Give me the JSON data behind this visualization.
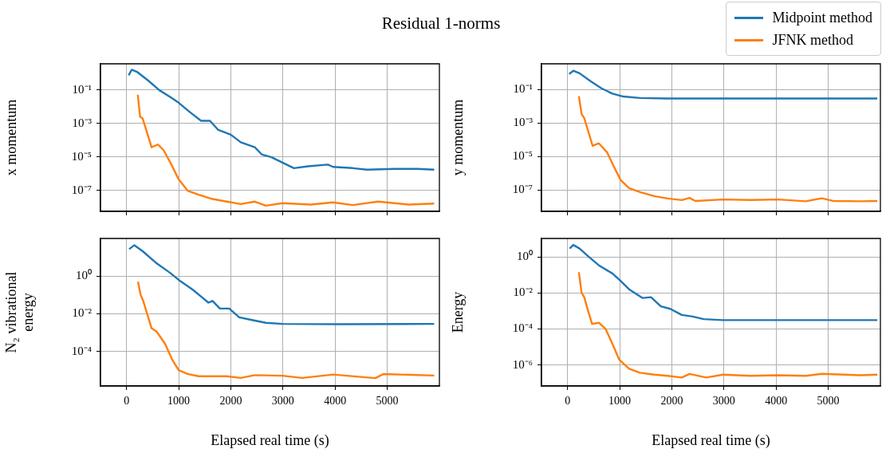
{
  "chart_data": [
    {
      "type": "line",
      "title": "Residual 1-norms",
      "ylabel": "x momentum",
      "log": "y",
      "grid": true,
      "tick_labels": "y",
      "legend": false,
      "xlim": [
        -500,
        6000
      ],
      "xticks": [
        0,
        1000,
        2000,
        3000,
        4000,
        5000
      ],
      "ylim": [
        5.5e-09,
        3.6
      ],
      "yticks": [
        {
          "value": 0.1,
          "label": "10⁻¹"
        },
        {
          "value": 0.001,
          "label": "10⁻³"
        },
        {
          "value": 1e-05,
          "label": "10⁻⁵"
        },
        {
          "value": 1e-07,
          "label": "10⁻⁷"
        }
      ],
      "series": [
        {
          "color": "#1f77b4",
          "x": [
            40,
            100,
            200,
            410,
            630,
            840,
            1000,
            1220,
            1430,
            1600,
            1760,
            2000,
            2190,
            2460,
            2590,
            2780,
            2990,
            3210,
            3480,
            3860,
            3960,
            4340,
            4610,
            5150,
            5580,
            5900
          ],
          "values": [
            0.74,
            1.6,
            1.2,
            0.37,
            0.095,
            0.037,
            0.017,
            0.0045,
            0.0014,
            0.0014,
            0.0004,
            0.00021,
            7.4e-05,
            3.7e-05,
            1.4e-05,
            9.5e-06,
            4.5e-06,
            2.1e-06,
            2.7e-06,
            3.4e-06,
            2.5e-06,
            2.1e-06,
            1.7e-06,
            1.9e-06,
            1.9e-06,
            1.7e-06
          ]
        },
        {
          "color": "#ff7f0e",
          "x": [
            215,
            260,
            310,
            390,
            480,
            600,
            710,
            840,
            1000,
            1170,
            1380,
            1650,
            1920,
            2190,
            2460,
            2670,
            2990,
            3530,
            3960,
            4340,
            4820,
            5410,
            5900
          ],
          "values": [
            0.05,
            0.0025,
            0.0019,
            0.0003,
            3.7e-05,
            5.4e-05,
            2.5e-05,
            4.5e-06,
            4.5e-07,
            9.5e-08,
            5.4e-08,
            3e-08,
            2.1e-08,
            1.5e-08,
            2.1e-08,
            1.2e-08,
            1.7e-08,
            1.4e-08,
            1.9e-08,
            1.3e-08,
            2.1e-08,
            1.4e-08,
            1.6e-08
          ]
        }
      ]
    },
    {
      "type": "line",
      "ylabel": "y momentum",
      "log": "y",
      "grid": true,
      "tick_labels": "y",
      "legend": "top right",
      "xlim": [
        -500,
        6000
      ],
      "xticks": [
        0,
        1000,
        2000,
        3000,
        4000,
        5000
      ],
      "ylim": [
        5.5e-09,
        3.5
      ],
      "yticks": [
        {
          "value": 0.1,
          "label": "10⁻¹"
        },
        {
          "value": 0.001,
          "label": "10⁻³"
        },
        {
          "value": 1e-05,
          "label": "10⁻⁵"
        },
        {
          "value": 1e-07,
          "label": "10⁻⁷"
        }
      ],
      "series": [
        {
          "name": "Midpoint method",
          "color": "#1f77b4",
          "x": [
            30,
            110,
            230,
            440,
            650,
            860,
            1070,
            1390,
            1920,
            2980,
            5940
          ],
          "values": [
            0.85,
            1.35,
            0.95,
            0.32,
            0.12,
            0.058,
            0.039,
            0.032,
            0.03,
            0.03,
            0.03
          ]
        },
        {
          "name": "JFNK method",
          "color": "#ff7f0e",
          "x": [
            217,
            270,
            320,
            390,
            480,
            600,
            760,
            890,
            1020,
            1180,
            1390,
            1660,
            1920,
            2190,
            2340,
            2450,
            2980,
            3510,
            4040,
            4570,
            4880,
            5090,
            5620,
            5940
          ],
          "values": [
            0.041,
            0.0035,
            0.002,
            0.00039,
            4.5e-05,
            6.3e-05,
            1.8e-05,
            2.5e-06,
            4e-07,
            1.35e-07,
            7.8e-08,
            4.5e-08,
            3.2e-08,
            2.6e-08,
            3.5e-08,
            2.3e-08,
            2.8e-08,
            2.6e-08,
            2.8e-08,
            2.2e-08,
            3.3e-08,
            2.3e-08,
            2.2e-08,
            2.3e-08
          ]
        }
      ]
    },
    {
      "type": "line",
      "xlabel": "Elapsed real time (s)",
      "ylabel": "N₂ vibrational energy",
      "log": "y",
      "grid": true,
      "legend": false,
      "xlim": [
        -500,
        6000
      ],
      "xticks": [
        0,
        1000,
        2000,
        3000,
        4000,
        5000
      ],
      "ylim": [
        1.45e-06,
        100
      ],
      "yticks": [
        {
          "value": 1,
          "label": "10⁰"
        },
        {
          "value": 0.01,
          "label": "10⁻²"
        },
        {
          "value": 0.0001,
          "label": "10⁻⁴"
        }
      ],
      "series": [
        {
          "color": "#1f77b4",
          "x": [
            50,
            150,
            310,
            580,
            840,
            1000,
            1270,
            1570,
            1650,
            1790,
            1970,
            2160,
            2350,
            2670,
            2990,
            4070,
            5900
          ],
          "values": [
            27,
            44,
            21,
            4.7,
            1.45,
            0.63,
            0.19,
            0.039,
            0.048,
            0.019,
            0.019,
            0.0065,
            0.005,
            0.0033,
            0.0029,
            0.0028,
            0.0029
          ]
        },
        {
          "color": "#ff7f0e",
          "x": [
            220,
            270,
            320,
            480,
            580,
            740,
            870,
            1000,
            1170,
            1380,
            1920,
            2190,
            2460,
            2990,
            3370,
            3960,
            4770,
            4930,
            5900
          ],
          "values": [
            0.5,
            0.1,
            0.048,
            0.0017,
            0.0011,
            0.00025,
            3.9e-05,
            1e-05,
            6.3e-06,
            4.8e-06,
            4.8e-06,
            3.9e-06,
            5.5e-06,
            5.1e-06,
            3.9e-06,
            5.9e-06,
            3.8e-06,
            6.3e-06,
            5.2e-06
          ]
        }
      ]
    },
    {
      "type": "line",
      "xlabel": "Elapsed real time (s)",
      "ylabel": "Energy",
      "log": "y",
      "grid": true,
      "legend": false,
      "xlim": [
        -500,
        6000
      ],
      "xticks": [
        0,
        1000,
        2000,
        3000,
        4000,
        5000
      ],
      "ylim": [
        6.8e-08,
        10.5
      ],
      "yticks": [
        {
          "value": 1,
          "label": "10⁰"
        },
        {
          "value": 0.01,
          "label": "10⁻²"
        },
        {
          "value": 0.0001,
          "label": "10⁻⁴"
        },
        {
          "value": 1e-06,
          "label": "10⁻⁶"
        }
      ],
      "series": [
        {
          "color": "#1f77b4",
          "x": [
            40,
            110,
            230,
            410,
            600,
            860,
            1000,
            1180,
            1440,
            1600,
            1790,
            1970,
            2190,
            2400,
            2610,
            2980,
            3510,
            5940
          ],
          "values": [
            2.9,
            4.6,
            2.9,
            1.0,
            0.34,
            0.12,
            0.052,
            0.016,
            0.0052,
            0.0058,
            0.0018,
            0.0013,
            0.0006,
            0.00049,
            0.00035,
            0.00031,
            0.00031,
            0.00031
          ]
        },
        {
          "color": "#ff7f0e",
          "x": [
            217,
            270,
            320,
            390,
            470,
            600,
            730,
            860,
            990,
            1180,
            1390,
            1660,
            1920,
            2190,
            2340,
            2660,
            2980,
            3510,
            4040,
            4570,
            4880,
            5620,
            5940
          ],
          "values": [
            0.14,
            0.01,
            0.0058,
            0.0011,
            0.00019,
            0.00022,
            0.0001,
            1.5e-05,
            2e-06,
            6.2e-07,
            3.7e-07,
            2.9e-07,
            2.5e-07,
            2e-07,
            3.2e-07,
            2e-07,
            2.9e-07,
            2.5e-07,
            2.7e-07,
            2.5e-07,
            3.2e-07,
            2.7e-07,
            2.9e-07
          ]
        }
      ]
    }
  ]
}
